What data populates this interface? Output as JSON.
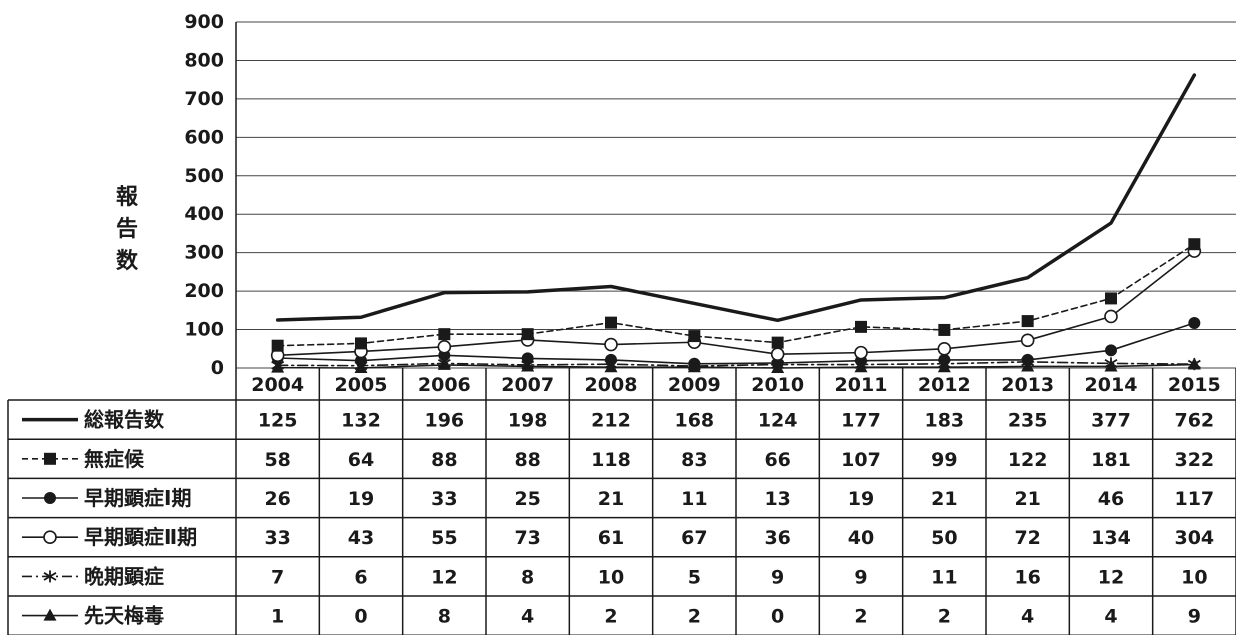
{
  "chart_data": {
    "type": "line",
    "ylabel": "報告数",
    "ylim": [
      0,
      900
    ],
    "y_ticks": [
      "0",
      "100",
      "200",
      "300",
      "400",
      "500",
      "600",
      "700",
      "800",
      "900"
    ],
    "categories": [
      "2004",
      "2005",
      "2006",
      "2007",
      "2008",
      "2009",
      "2010",
      "2011",
      "2012",
      "2013",
      "2014",
      "2015"
    ],
    "grid": true,
    "legend": "data-table-below",
    "series": [
      {
        "name": "総報告数",
        "marker": "none",
        "line": "solid-thick",
        "values": [
          125,
          132,
          196,
          198,
          212,
          168,
          124,
          177,
          183,
          235,
          377,
          762
        ]
      },
      {
        "name": "無症候",
        "marker": "square-filled",
        "line": "dashed",
        "values": [
          58,
          64,
          88,
          88,
          118,
          83,
          66,
          107,
          99,
          122,
          181,
          322
        ]
      },
      {
        "name": "早期顕症Ⅰ期",
        "marker": "circle-filled",
        "line": "solid",
        "values": [
          26,
          19,
          33,
          25,
          21,
          11,
          13,
          19,
          21,
          21,
          46,
          117
        ]
      },
      {
        "name": "早期顕症Ⅱ期",
        "marker": "circle-open",
        "line": "solid",
        "values": [
          33,
          43,
          55,
          73,
          61,
          67,
          36,
          40,
          50,
          72,
          134,
          304
        ]
      },
      {
        "name": "晩期顕症",
        "marker": "asterisk",
        "line": "dashdot",
        "values": [
          7,
          6,
          12,
          8,
          10,
          5,
          9,
          9,
          11,
          16,
          12,
          10
        ]
      },
      {
        "name": "先天梅毒",
        "marker": "triangle-filled",
        "line": "solid",
        "values": [
          1,
          0,
          8,
          4,
          2,
          2,
          0,
          2,
          2,
          4,
          4,
          9
        ]
      }
    ]
  },
  "colors": {
    "line": "#1a1a1a",
    "grid": "#444444",
    "background": "#ffffff"
  }
}
